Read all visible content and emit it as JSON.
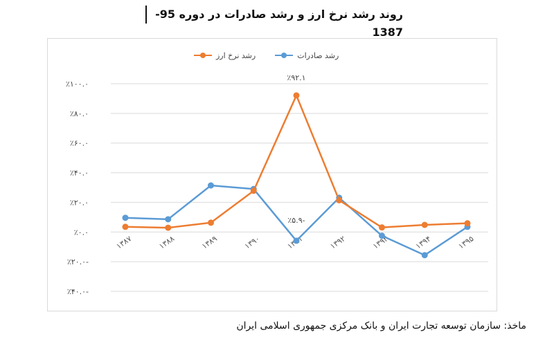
{
  "title": "روند رشد نرخ ارز و رشد صادرات در دوره  95-1387",
  "source_line1": "ماخذ: سازمان توسعه تجارت ایران و بانک مرکزی جمهوری اسلامی ایران",
  "source_line2": "",
  "colors": {
    "exports": "#5b9bd5",
    "exchange": "#ed7d31",
    "grid": "#d9d9d9"
  },
  "chart_data": {
    "type": "line",
    "categories": [
      "۱۳۸۷",
      "۱۳۸۸",
      "۱۳۸۹",
      "۱۳۹۰",
      "۱۳۹۱",
      "۱۳۹۲",
      "۱۳۹۳",
      "۱۳۹۴",
      "۱۳۹۵"
    ],
    "series": [
      {
        "name": "رشد صادرات",
        "values": [
          9.6,
          8.6,
          31.4,
          29.0,
          -5.9,
          23.1,
          -2.5,
          -15.6,
          3.5
        ]
      },
      {
        "name": "رشد نرخ ارز",
        "values": [
          3.5,
          2.9,
          6.3,
          27.8,
          92.1,
          21.4,
          3.1,
          4.8,
          5.9
        ]
      }
    ],
    "ylim": [
      -40,
      100
    ],
    "yticks": [
      -40,
      -20,
      0,
      20,
      40,
      60,
      80,
      100
    ],
    "ytick_labels": [
      "٪۴۰.۰-",
      "٪۲۰.۰-",
      "٪۰.۰",
      "٪۲۰.۰",
      "٪۴۰.۰",
      "٪۶۰.۰",
      "٪۸۰.۰",
      "٪۱۰۰.۰"
    ],
    "annotations": [
      {
        "series": 1,
        "index": 4,
        "text": "٪۹۲.۱"
      },
      {
        "series": 0,
        "index": 4,
        "text": "٪۵.۹-"
      }
    ],
    "grid": true,
    "legend_position": "top"
  }
}
